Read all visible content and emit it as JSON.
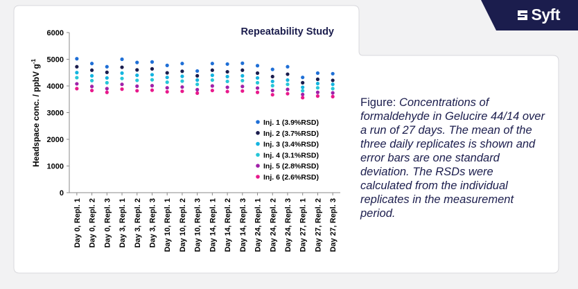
{
  "logo": {
    "text": "Syft",
    "color": "#1b1d4d"
  },
  "caption": {
    "label": "Figure:",
    "text": "Concentrations of formaldehyde in Gelucire 44/14 over a run of 27 days. The mean of the three daily replicates is shown and error bars are one standard deviation. The RSDs were calculated from the individual replicates in the measurement period."
  },
  "chart_data": {
    "type": "scatter",
    "title": "Repeatability Study",
    "ylabel": "Headspace conc. / ppbV g",
    "ylabel_superscript": "-1",
    "xlabel": "",
    "ylim": [
      0,
      6000
    ],
    "yticks": [
      0,
      1000,
      2000,
      3000,
      4000,
      5000,
      6000
    ],
    "grid": false,
    "legend_position": "inside right",
    "categories": [
      "Day 0, Repl. 1",
      "Day 0, Repl. 2",
      "Day 0, Repl. 3",
      "Day 3, Repl. 1",
      "Day 3, Repl. 2",
      "Day 3, Repl. 3",
      "Day 10, Repl. 1",
      "Day 10, Repl. 2",
      "Day 10, Repl. 3",
      "Day 14, Repl. 1",
      "Day 14, Repl. 2",
      "Day 14, Repl. 3",
      "Day 24, Repl. 1",
      "Day 24, Repl. 2",
      "Day 24, Repl. 3",
      "Day 27, Repl. 1",
      "Day 27, Repl. 2",
      "Day 27, Repl. 3"
    ],
    "series": [
      {
        "name": "Inj. 1 (3.9%RSD)",
        "color": "#1f6fd6",
        "values": [
          5020,
          4840,
          4720,
          5000,
          4880,
          4900,
          4770,
          4840,
          4560,
          4840,
          4820,
          4850,
          4760,
          4620,
          4720,
          4320,
          4480,
          4460
        ]
      },
      {
        "name": "Inj. 2 (3.7%RSD)",
        "color": "#1b1d4d",
        "values": [
          4720,
          4590,
          4510,
          4700,
          4600,
          4640,
          4490,
          4550,
          4380,
          4590,
          4530,
          4590,
          4480,
          4350,
          4440,
          4120,
          4250,
          4210
        ]
      },
      {
        "name": "Inj. 3 (3.4%RSD)",
        "color": "#14b4e0",
        "values": [
          4500,
          4380,
          4300,
          4480,
          4400,
          4420,
          4320,
          4360,
          4220,
          4400,
          4350,
          4380,
          4300,
          4170,
          4220,
          3950,
          4090,
          4060
        ]
      },
      {
        "name": "Inj. 4 (3.1%RSD)",
        "color": "#26c6d8",
        "values": [
          4310,
          4200,
          4120,
          4280,
          4210,
          4230,
          4140,
          4180,
          4060,
          4220,
          4170,
          4200,
          4120,
          4010,
          4060,
          3820,
          3930,
          3900
        ]
      },
      {
        "name": "Inj. 5 (2.8%RSD)",
        "color": "#a020a8",
        "values": [
          4080,
          3980,
          3900,
          4060,
          3990,
          4010,
          3930,
          3960,
          3860,
          4000,
          3950,
          3980,
          3920,
          3830,
          3870,
          3680,
          3760,
          3740
        ]
      },
      {
        "name": "Inj. 6 (2.6%RSD)",
        "color": "#e8198c",
        "values": [
          3900,
          3830,
          3760,
          3880,
          3820,
          3840,
          3780,
          3800,
          3730,
          3830,
          3790,
          3810,
          3760,
          3670,
          3710,
          3560,
          3620,
          3600
        ]
      }
    ]
  }
}
